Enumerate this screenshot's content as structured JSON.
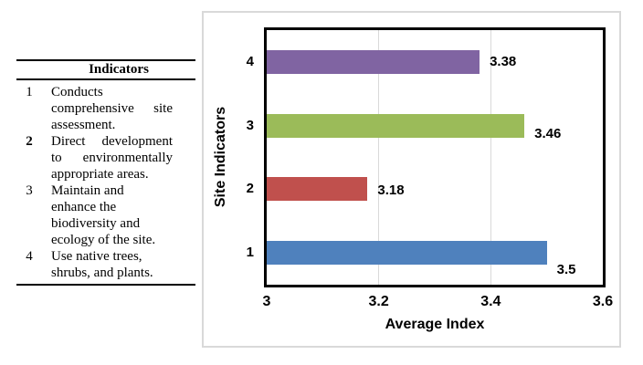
{
  "table": {
    "header": "Indicators",
    "rows": [
      {
        "num": "1",
        "num_bold": false,
        "justify": true,
        "text": "Conducts comprehensive site assessment.",
        "lines": [
          "Conducts",
          "comprehensive site",
          "assessment."
        ]
      },
      {
        "num": "2",
        "num_bold": true,
        "justify": true,
        "text": "Direct development to environmentally appropriate areas.",
        "lines": [
          "Direct development",
          "to environmentally",
          "appropriate areas."
        ]
      },
      {
        "num": "3",
        "num_bold": false,
        "justify": false,
        "text": "Maintain and enhance the biodiversity and ecology of the site.",
        "lines": [
          "Maintain and",
          "enhance the",
          "biodiversity and",
          "ecology of the site."
        ]
      },
      {
        "num": "4",
        "num_bold": false,
        "justify": false,
        "text": "Use native trees, shrubs, and plants.",
        "lines": [
          "Use native trees,",
          "shrubs, and plants."
        ]
      }
    ]
  },
  "chart_data": {
    "type": "bar",
    "orientation": "horizontal",
    "title": "",
    "xlabel": "Average Index",
    "ylabel": "Site Indicators",
    "categories": [
      "4",
      "3",
      "2",
      "1"
    ],
    "values": [
      3.38,
      3.46,
      3.18,
      3.5
    ],
    "value_labels": [
      "3.38",
      "3.46",
      "3.18",
      "3.5"
    ],
    "bar_colors": [
      "#8064A2",
      "#9BBB59",
      "#C0504D",
      "#4F81BD"
    ],
    "xlim": [
      3,
      3.6
    ],
    "x_ticks": [
      3,
      3.2,
      3.4,
      3.6
    ],
    "x_tick_labels": [
      "3",
      "3.2",
      "3.4",
      "3.6"
    ],
    "grid": "vertical gridlines at interior x ticks",
    "gridline_color": "#D9D9D9",
    "plot_border_color": "#000000",
    "frame_border_color": "#D9D9D9",
    "legend": "none"
  }
}
